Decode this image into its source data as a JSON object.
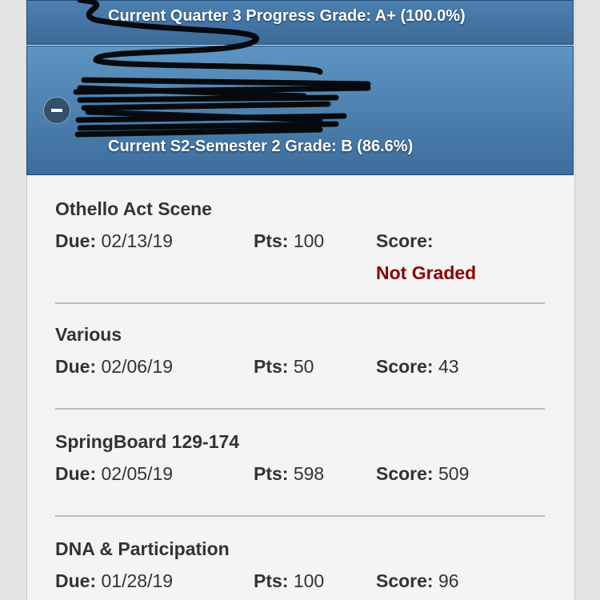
{
  "courses": [
    {
      "grade_text": "Current Quarter 3 Progress Grade: A+ (100.0%)"
    },
    {
      "grade_text": "Current S2-Semester 2 Grade: B (86.6%)",
      "expanded": true,
      "toggle_icon": "minus-circle-icon"
    }
  ],
  "labels": {
    "due": "Due:",
    "pts": "Pts:",
    "score": "Score:"
  },
  "assignments": [
    {
      "title": "Othello Act Scene",
      "due": "02/13/19",
      "pts": "100",
      "score": "",
      "status": "Not Graded"
    },
    {
      "title": "Various",
      "due": "02/06/19",
      "pts": "50",
      "score": "43"
    },
    {
      "title": "SpringBoard 129-174",
      "due": "02/05/19",
      "pts": "598",
      "score": "509"
    },
    {
      "title": "DNA & Participation",
      "due": "01/28/19",
      "pts": "100",
      "score": "96"
    }
  ],
  "colors": {
    "header_blue": "#4a7fb0",
    "not_graded": "#8b0000"
  }
}
